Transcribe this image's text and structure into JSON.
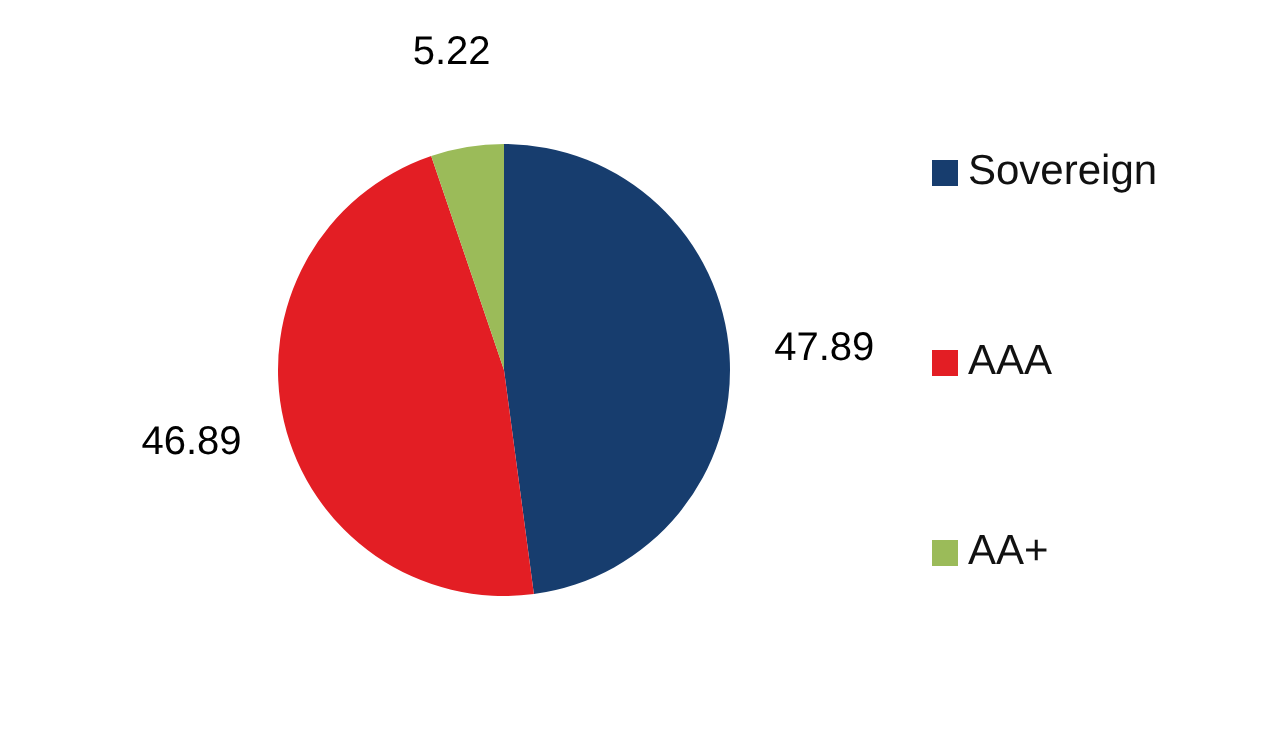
{
  "chart_data": {
    "type": "pie",
    "categories": [
      "Sovereign",
      "AAA",
      "AA+"
    ],
    "values": [
      47.89,
      46.89,
      5.22
    ],
    "colors": [
      "#173d6e",
      "#e31e24",
      "#9bbb59"
    ],
    "data_labels": true,
    "legend": "right"
  }
}
